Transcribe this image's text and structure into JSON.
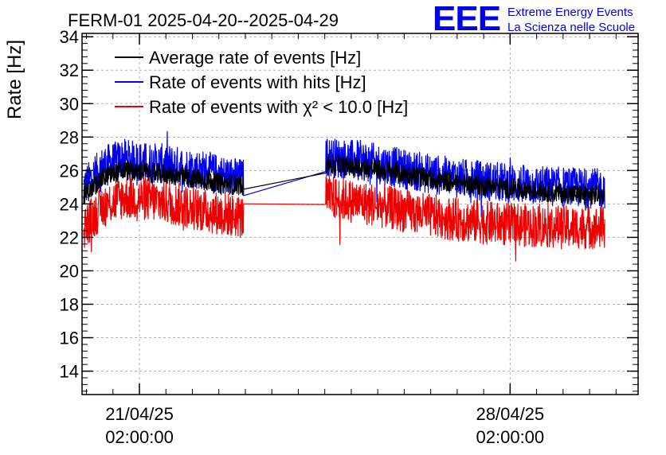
{
  "chart_data": {
    "type": "line",
    "title": "FERM-01 2025-04-20--2025-04-29",
    "ylabel": "Rate [Hz]",
    "xlabel": "",
    "ylim": [
      12.6,
      34.2
    ],
    "yticks": [
      14,
      16,
      18,
      20,
      22,
      24,
      26,
      28,
      30,
      32,
      34
    ],
    "x_unit": "days since 2025-04-20 00:00",
    "xlim": [
      0,
      10.5
    ],
    "xticks": [
      {
        "x": 1.0833,
        "line1": "21/04/25",
        "line2": "02:00:00"
      },
      {
        "x": 8.0833,
        "line1": "28/04/25",
        "line2": "02:00:00"
      }
    ],
    "grid": true,
    "legend_position": "top-left",
    "segments": [
      [
        0.03,
        3.05
      ],
      [
        4.6,
        9.87
      ]
    ],
    "series": [
      {
        "name": "Average rate of events [Hz]",
        "color": "#000000",
        "start": [
          24.5,
          25.6,
          26.0,
          25.9,
          25.8,
          25.6,
          25.4,
          25.2,
          25.1
        ],
        "end": [
          26.4,
          26.2,
          25.9,
          25.5,
          25.2,
          25.0,
          24.8,
          24.6,
          24.5
        ],
        "spread": 0.6
      },
      {
        "name": "Rate of events with hits [Hz]",
        "color": "#0000ee",
        "start": [
          25.0,
          26.3,
          26.7,
          26.5,
          26.4,
          26.2,
          26.0,
          25.7,
          25.5
        ],
        "end": [
          26.8,
          26.6,
          26.2,
          25.8,
          25.5,
          25.3,
          25.1,
          25.0,
          24.9
        ],
        "spread": 1.2
      },
      {
        "name": "Rate of events with χ² < 10.0 [Hz]",
        "color": "#ee0000",
        "start": [
          22.6,
          23.9,
          24.4,
          24.3,
          24.1,
          23.9,
          23.6,
          23.4,
          23.2
        ],
        "end": [
          24.4,
          24.1,
          23.7,
          23.3,
          23.0,
          22.8,
          22.7,
          22.6,
          22.6
        ],
        "spread": 1.3
      }
    ]
  },
  "logo": {
    "big": "EEE",
    "line1": "Extreme Energy Events",
    "line2": "La Scienza nelle Scuole"
  }
}
